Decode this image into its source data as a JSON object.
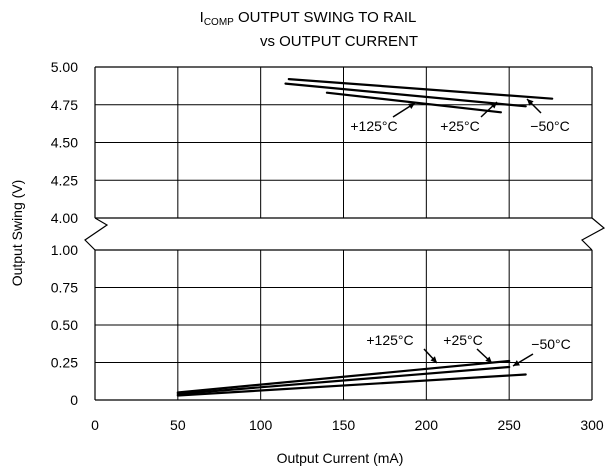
{
  "chart_data": {
    "type": "line",
    "title": {
      "prefix": "I",
      "subscript": "COMP",
      "line1_rest": " OUTPUT SWING TO RAIL",
      "line2": "vs OUTPUT CURRENT"
    },
    "xlabel": "Output Current (mA)",
    "ylabel": "Output Swing (V)",
    "xlim": [
      0,
      300
    ],
    "x_ticks": [
      "0",
      "50",
      "100",
      "150",
      "200",
      "250",
      "300"
    ],
    "upper_panel": {
      "ylim": [
        4.0,
        5.0
      ],
      "y_ticks": [
        "5.00",
        "4.75",
        "4.50",
        "4.25",
        "4.00"
      ],
      "series": [
        {
          "name": "+125°C",
          "x": [
            140,
            245
          ],
          "y": [
            4.83,
            4.7
          ]
        },
        {
          "name": "+25°C",
          "x": [
            115,
            260
          ],
          "y": [
            4.89,
            4.74
          ]
        },
        {
          "name": "−50°C",
          "x": [
            117,
            276
          ],
          "y": [
            4.92,
            4.79
          ]
        }
      ]
    },
    "lower_panel": {
      "ylim": [
        0,
        1.0
      ],
      "y_ticks": [
        "1.00",
        "0.75",
        "0.50",
        "0.25",
        "0"
      ],
      "series": [
        {
          "name": "+125°C",
          "x": [
            50,
            250
          ],
          "y": [
            0.05,
            0.26
          ]
        },
        {
          "name": "+25°C",
          "x": [
            50,
            250
          ],
          "y": [
            0.04,
            0.22
          ]
        },
        {
          "name": "−50°C",
          "x": [
            50,
            260
          ],
          "y": [
            0.03,
            0.17
          ]
        }
      ]
    },
    "annotations": {
      "upper": [
        "+125°C",
        "+25°C",
        "−50°C"
      ],
      "lower": [
        "+125°C",
        "+25°C",
        "−50°C"
      ]
    },
    "grid": true
  }
}
